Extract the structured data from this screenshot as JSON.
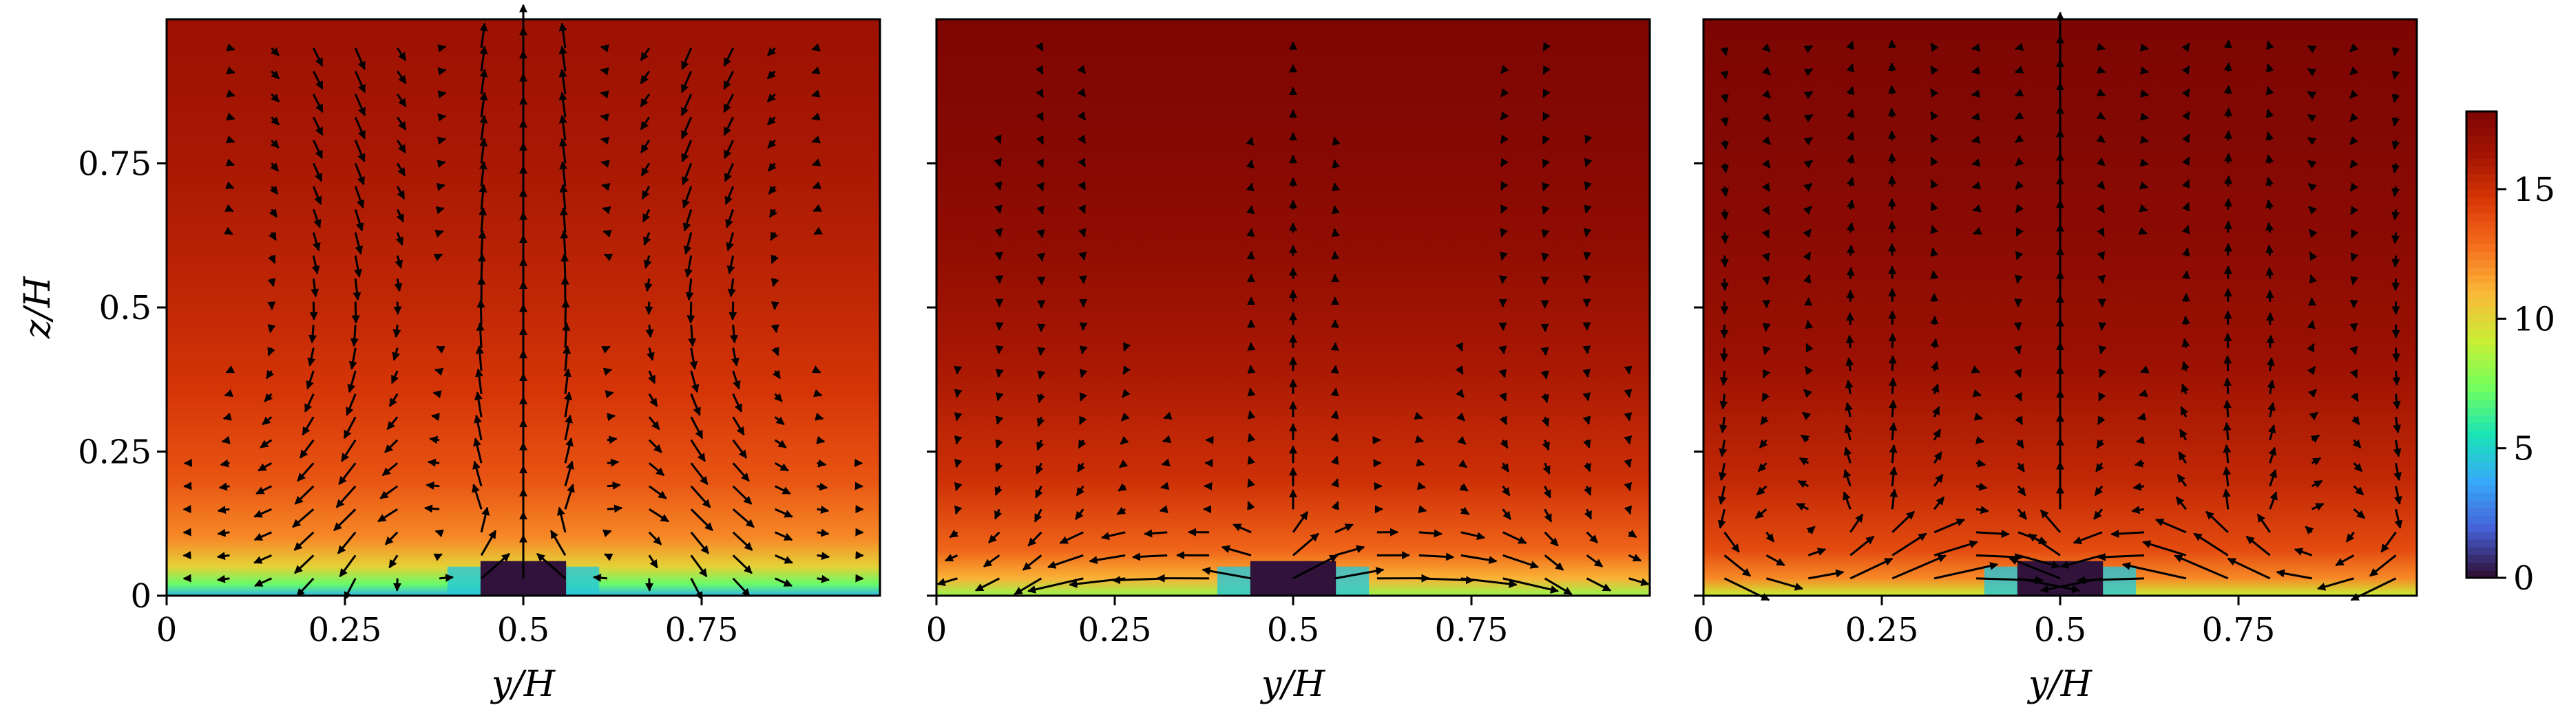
{
  "chart_data": {
    "type": "heatmap",
    "colormap": "turbo",
    "colorbar": {
      "range": [
        0,
        18
      ],
      "ticks": [
        0,
        5,
        10,
        15
      ],
      "tick_labels": [
        "0",
        "5",
        "10",
        "15"
      ]
    },
    "x_ticks": [
      0,
      0.25,
      0.5,
      0.75
    ],
    "x_tick_labels": [
      "0",
      "0.25",
      "0.5",
      "0.75"
    ],
    "y_ticks": [
      0,
      0.25,
      0.5,
      0.75
    ],
    "y_tick_labels": [
      "0",
      "0.25",
      "0.5",
      "0.75"
    ],
    "xlabel": "y/H",
    "ylabel": "z/H",
    "xlim": [
      0,
      1
    ],
    "ylim": [
      0,
      1
    ],
    "obstacle": {
      "y_range": [
        0.44,
        0.56
      ],
      "z_top": 0.06,
      "value": 0
    },
    "panels": [
      {
        "xlabel": "y/H",
        "ylabel": "z/H",
        "field_profile": [
          [
            0,
            4
          ],
          [
            0.02,
            7
          ],
          [
            0.05,
            10
          ],
          [
            0.1,
            12
          ],
          [
            0.2,
            13.5
          ],
          [
            0.35,
            14.5
          ],
          [
            0.5,
            15.2
          ],
          [
            0.75,
            16
          ],
          [
            1,
            16.5
          ]
        ],
        "vectors": "two counter-rotating cells with strong upflow along y/H = 0.5 and downflow near the sides"
      },
      {
        "xlabel": "y/H",
        "field_profile": [
          [
            0,
            8
          ],
          [
            0.03,
            11
          ],
          [
            0.08,
            13
          ],
          [
            0.2,
            14.8
          ],
          [
            0.4,
            16
          ],
          [
            0.6,
            17
          ],
          [
            0.8,
            17.5
          ],
          [
            1,
            17.8
          ]
        ],
        "vectors": "weaker secondary flow, strong lateral jets near the floor"
      },
      {
        "xlabel": "y/H",
        "field_profile": [
          [
            0,
            9
          ],
          [
            0.03,
            12
          ],
          [
            0.08,
            13.8
          ],
          [
            0.2,
            15.2
          ],
          [
            0.4,
            16.5
          ],
          [
            0.6,
            17.2
          ],
          [
            0.8,
            17.6
          ],
          [
            1,
            17.9
          ]
        ],
        "vectors": "many small cells, strong near-wall lateral flow"
      }
    ]
  }
}
